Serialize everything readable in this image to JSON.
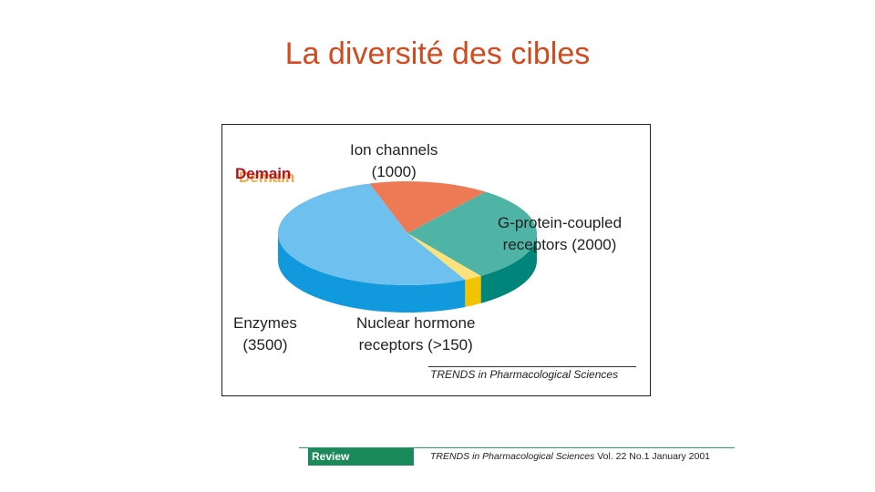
{
  "slide": {
    "title": "La diversité des cibles"
  },
  "stamp": "Demain",
  "chart_data": {
    "type": "pie",
    "categories": [
      "Enzymes",
      "Ion channels",
      "G-protein-coupled receptors",
      "Nuclear hormone receptors"
    ],
    "values": [
      3500,
      1000,
      2000,
      150
    ],
    "labels": [
      {
        "name": "Enzymes",
        "value": "(3500)"
      },
      {
        "name": "Ion channels",
        "value": "(1000)"
      },
      {
        "name": "G-protein-coupled",
        "name2": "receptors (2000)"
      },
      {
        "name": "Nuclear hormone",
        "value": "receptors (>150)"
      }
    ],
    "colors": {
      "top": [
        "#6ec1ee",
        "#ee7a55",
        "#4fb3a5",
        "#fbe27a"
      ],
      "side": [
        "#1199dd",
        "#c9532f",
        "#00857a",
        "#f2c400"
      ]
    },
    "three_d": true,
    "credit": "TRENDS in Pharmacological Sciences"
  },
  "footer": {
    "badge": "Review",
    "journal": "TRENDS in Pharmacological Sciences",
    "issue": "Vol. 22 No.1  January 2001"
  }
}
